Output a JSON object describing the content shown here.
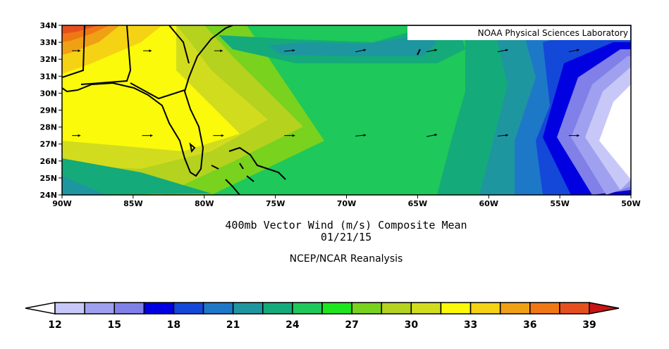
{
  "credit": "NOAA Physical Sciences Laboratory",
  "title": "400mb Vector Wind (m/s) Composite Mean",
  "date": "01/21/15",
  "subtitle": "NCEP/NCAR Reanalysis",
  "map": {
    "lon_range": [
      -90,
      -50
    ],
    "lat_range": [
      24,
      34
    ],
    "lat_labels": [
      "34N",
      "33N",
      "32N",
      "31N",
      "30N",
      "29N",
      "28N",
      "27N",
      "26N",
      "25N",
      "24N"
    ],
    "lon_labels": [
      "90W",
      "85W",
      "80W",
      "75W",
      "70W",
      "65W",
      "60W",
      "55W",
      "50W"
    ],
    "wind_vectors": [
      {
        "lon": -89,
        "lat": 32.5,
        "u": 4,
        "v": 0
      },
      {
        "lon": -84,
        "lat": 32.5,
        "u": 4,
        "v": 0
      },
      {
        "lon": -79,
        "lat": 32.5,
        "u": 4,
        "v": 0
      },
      {
        "lon": -74,
        "lat": 32.5,
        "u": 5,
        "v": 0.5
      },
      {
        "lon": -69,
        "lat": 32.5,
        "u": 5,
        "v": 1
      },
      {
        "lon": -64,
        "lat": 32.5,
        "u": 5,
        "v": 1
      },
      {
        "lon": -59,
        "lat": 32.5,
        "u": 5,
        "v": 1
      },
      {
        "lon": -54,
        "lat": 32.5,
        "u": 5,
        "v": 1
      },
      {
        "lon": -89,
        "lat": 27.5,
        "u": 4,
        "v": 0
      },
      {
        "lon": -84,
        "lat": 27.5,
        "u": 5,
        "v": 0
      },
      {
        "lon": -79,
        "lat": 27.5,
        "u": 5,
        "v": 0
      },
      {
        "lon": -74,
        "lat": 27.5,
        "u": 5,
        "v": 0
      },
      {
        "lon": -69,
        "lat": 27.5,
        "u": 5,
        "v": 0.5
      },
      {
        "lon": -64,
        "lat": 27.5,
        "u": 5,
        "v": 1
      },
      {
        "lon": -59,
        "lat": 27.5,
        "u": 5,
        "v": 0.5
      },
      {
        "lon": -54,
        "lat": 27.5,
        "u": 5,
        "v": 0
      }
    ]
  },
  "colorbar": {
    "labels": [
      "12",
      "15",
      "18",
      "21",
      "24",
      "27",
      "30",
      "33",
      "36",
      "39"
    ],
    "colors": [
      "#ffffff",
      "#c8c8f8",
      "#a0a0f0",
      "#8080e8",
      "#0000e0",
      "#1448d8",
      "#1e78c8",
      "#1e96a0",
      "#14aa7a",
      "#1ec85a",
      "#1ee61e",
      "#78d21e",
      "#b4d21e",
      "#d2dc1e",
      "#fafa0a",
      "#f5d214",
      "#f0a014",
      "#f07814",
      "#e6501e",
      "#c81414"
    ]
  }
}
